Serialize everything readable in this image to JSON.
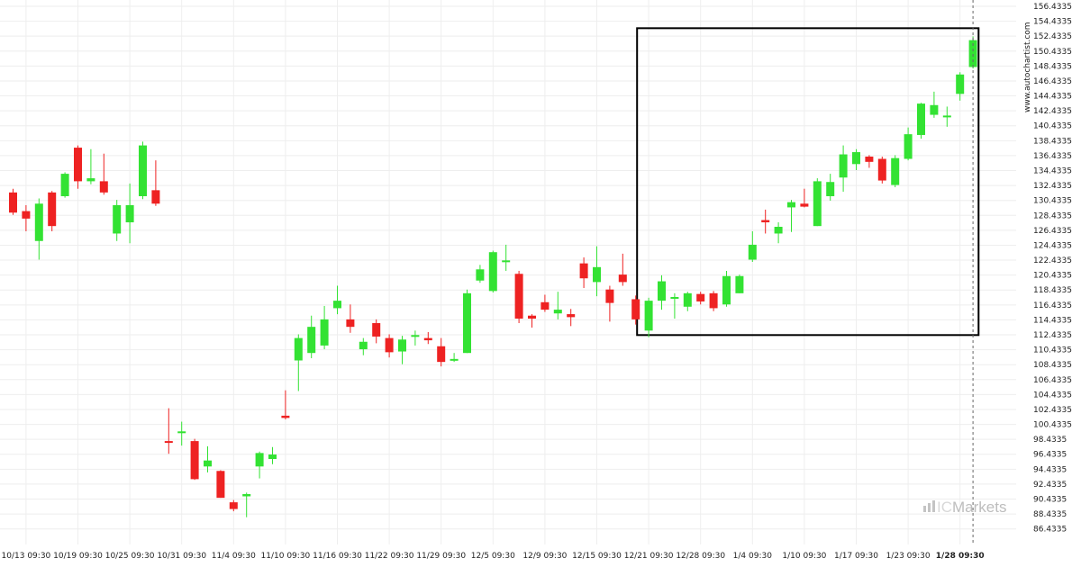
{
  "colors": {
    "up": "#33e233",
    "down": "#ee2222",
    "wick": "#333333",
    "pattern_box": "#000000",
    "cursor": "#666666"
  },
  "side_label": "www.autochartist.com",
  "watermark": {
    "brand_light": "IC",
    "brand_dark": "Markets"
  },
  "chart_data": {
    "type": "candlestick",
    "title": "",
    "xlabel": "",
    "ylabel": "",
    "ylim": [
      85.4335,
      156.4335
    ],
    "y_ticks": [
      "156.4335",
      "154.4335",
      "152.4335",
      "150.4335",
      "148.4335",
      "146.4335",
      "144.4335",
      "142.4335",
      "140.4335",
      "138.4335",
      "136.4335",
      "134.4335",
      "132.4335",
      "130.4335",
      "128.4335",
      "126.4335",
      "124.4335",
      "122.4335",
      "120.4335",
      "118.4335",
      "116.4335",
      "114.4335",
      "112.4335",
      "110.4335",
      "108.4335",
      "106.4335",
      "104.4335",
      "102.4335",
      "100.4335",
      "98.4335",
      "96.4335",
      "94.4335",
      "92.4335",
      "90.4335",
      "88.4335",
      "86.4335"
    ],
    "x_ticks": [
      {
        "label": "10/13 09:30",
        "index": 1
      },
      {
        "label": "10/19 09:30",
        "index": 5
      },
      {
        "label": "10/25 09:30",
        "index": 9
      },
      {
        "label": "10/31 09:30",
        "index": 13
      },
      {
        "label": "11/4 09:30",
        "index": 17
      },
      {
        "label": "11/10 09:30",
        "index": 21
      },
      {
        "label": "11/16 09:30",
        "index": 25
      },
      {
        "label": "11/22 09:30",
        "index": 29
      },
      {
        "label": "11/29 09:30",
        "index": 33
      },
      {
        "label": "12/5 09:30",
        "index": 37
      },
      {
        "label": "12/9 09:30",
        "index": 41
      },
      {
        "label": "12/15 09:30",
        "index": 45
      },
      {
        "label": "12/21 09:30",
        "index": 49
      },
      {
        "label": "12/28 09:30",
        "index": 53
      },
      {
        "label": "1/4 09:30",
        "index": 57
      },
      {
        "label": "1/10 09:30",
        "index": 61
      },
      {
        "label": "1/17 09:30",
        "index": 65
      },
      {
        "label": "1/23 09:30",
        "index": 69
      },
      {
        "label": "1/28 09:30",
        "index": 73,
        "bold": true
      }
    ],
    "candles": [
      {
        "o": 131.5,
        "h": 132.0,
        "l": 128.5,
        "c": 128.8
      },
      {
        "o": 129.0,
        "h": 129.8,
        "l": 126.3,
        "c": 128.0
      },
      {
        "o": 125.0,
        "h": 130.7,
        "l": 122.5,
        "c": 130.0
      },
      {
        "o": 131.5,
        "h": 131.7,
        "l": 126.3,
        "c": 127.0
      },
      {
        "o": 131.0,
        "h": 134.2,
        "l": 130.8,
        "c": 134.0
      },
      {
        "o": 137.5,
        "h": 137.8,
        "l": 132.0,
        "c": 133.0
      },
      {
        "o": 133.0,
        "h": 137.3,
        "l": 132.6,
        "c": 133.4
      },
      {
        "o": 133.0,
        "h": 136.7,
        "l": 131.2,
        "c": 131.5
      },
      {
        "o": 126.0,
        "h": 130.5,
        "l": 125.0,
        "c": 129.8
      },
      {
        "o": 127.5,
        "h": 132.7,
        "l": 124.7,
        "c": 129.8
      },
      {
        "o": 131.0,
        "h": 138.3,
        "l": 130.6,
        "c": 137.8
      },
      {
        "o": 131.8,
        "h": 135.8,
        "l": 129.7,
        "c": 130.0
      },
      {
        "o": 98.2,
        "h": 102.6,
        "l": 96.5,
        "c": 98.0
      },
      {
        "o": 99.3,
        "h": 100.8,
        "l": 97.6,
        "c": 99.5
      },
      {
        "o": 98.2,
        "h": 98.5,
        "l": 93.0,
        "c": 93.1
      },
      {
        "o": 94.8,
        "h": 97.5,
        "l": 94.0,
        "c": 95.6
      },
      {
        "o": 94.2,
        "h": 94.3,
        "l": 90.6,
        "c": 90.6
      },
      {
        "o": 90.0,
        "h": 90.3,
        "l": 88.8,
        "c": 89.1
      },
      {
        "o": 90.8,
        "h": 91.3,
        "l": 88.0,
        "c": 91.1
      },
      {
        "o": 94.8,
        "h": 96.8,
        "l": 93.2,
        "c": 96.6
      },
      {
        "o": 95.8,
        "h": 97.4,
        "l": 95.1,
        "c": 96.4
      },
      {
        "o": 101.6,
        "h": 105.0,
        "l": 101.1,
        "c": 101.3
      },
      {
        "o": 109.0,
        "h": 112.5,
        "l": 104.9,
        "c": 112.0
      },
      {
        "o": 110.0,
        "h": 115.0,
        "l": 109.3,
        "c": 113.5
      },
      {
        "o": 111.0,
        "h": 116.3,
        "l": 110.5,
        "c": 114.5
      },
      {
        "o": 116.0,
        "h": 119.0,
        "l": 115.2,
        "c": 117.0
      },
      {
        "o": 114.5,
        "h": 116.5,
        "l": 112.7,
        "c": 113.5
      },
      {
        "o": 110.5,
        "h": 112.0,
        "l": 109.7,
        "c": 111.5
      },
      {
        "o": 114.0,
        "h": 114.5,
        "l": 111.3,
        "c": 112.2
      },
      {
        "o": 112.0,
        "h": 112.5,
        "l": 109.4,
        "c": 110.1
      },
      {
        "o": 110.2,
        "h": 112.3,
        "l": 108.5,
        "c": 111.8
      },
      {
        "o": 112.2,
        "h": 113.0,
        "l": 111.0,
        "c": 112.4
      },
      {
        "o": 112.0,
        "h": 112.8,
        "l": 111.2,
        "c": 111.7
      },
      {
        "o": 110.9,
        "h": 112.0,
        "l": 108.2,
        "c": 108.8
      },
      {
        "o": 109.2,
        "h": 110.0,
        "l": 108.8,
        "c": 109.2
      },
      {
        "o": 110.0,
        "h": 118.5,
        "l": 110.0,
        "c": 118.0
      },
      {
        "o": 119.7,
        "h": 121.8,
        "l": 119.4,
        "c": 121.2
      },
      {
        "o": 118.3,
        "h": 123.7,
        "l": 118.1,
        "c": 123.5
      },
      {
        "o": 122.2,
        "h": 124.5,
        "l": 121.0,
        "c": 122.4
      },
      {
        "o": 120.6,
        "h": 121.0,
        "l": 114.0,
        "c": 114.6
      },
      {
        "o": 115.0,
        "h": 115.2,
        "l": 113.4,
        "c": 114.6
      },
      {
        "o": 116.8,
        "h": 117.8,
        "l": 115.5,
        "c": 115.8
      },
      {
        "o": 115.3,
        "h": 118.2,
        "l": 114.5,
        "c": 115.8
      },
      {
        "o": 115.2,
        "h": 115.9,
        "l": 113.6,
        "c": 114.8
      },
      {
        "o": 122.0,
        "h": 122.8,
        "l": 118.7,
        "c": 120.0
      },
      {
        "o": 119.5,
        "h": 124.3,
        "l": 117.6,
        "c": 121.5
      },
      {
        "o": 118.5,
        "h": 119.0,
        "l": 114.2,
        "c": 116.7
      },
      {
        "o": 120.5,
        "h": 123.3,
        "l": 119.0,
        "c": 119.5
      },
      {
        "o": 117.2,
        "h": 117.7,
        "l": 113.8,
        "c": 114.5
      },
      {
        "o": 113.0,
        "h": 117.4,
        "l": 112.1,
        "c": 117.0
      },
      {
        "o": 117.0,
        "h": 120.4,
        "l": 115.8,
        "c": 119.6
      },
      {
        "o": 117.3,
        "h": 118.0,
        "l": 114.6,
        "c": 117.5
      },
      {
        "o": 116.2,
        "h": 118.2,
        "l": 115.6,
        "c": 118.0
      },
      {
        "o": 117.9,
        "h": 118.2,
        "l": 116.5,
        "c": 116.9
      },
      {
        "o": 118.0,
        "h": 118.3,
        "l": 115.6,
        "c": 116.0
      },
      {
        "o": 116.5,
        "h": 121.0,
        "l": 116.2,
        "c": 120.3
      },
      {
        "o": 118.0,
        "h": 120.5,
        "l": 118.0,
        "c": 120.3
      },
      {
        "o": 122.5,
        "h": 126.3,
        "l": 122.2,
        "c": 124.5
      },
      {
        "o": 127.8,
        "h": 129.2,
        "l": 126.0,
        "c": 127.5
      },
      {
        "o": 126.0,
        "h": 127.5,
        "l": 124.7,
        "c": 126.9
      },
      {
        "o": 129.5,
        "h": 130.5,
        "l": 126.2,
        "c": 130.2
      },
      {
        "o": 130.0,
        "h": 132.0,
        "l": 129.5,
        "c": 129.6
      },
      {
        "o": 127.0,
        "h": 133.4,
        "l": 127.0,
        "c": 133.0
      },
      {
        "o": 131.0,
        "h": 134.0,
        "l": 130.4,
        "c": 132.9
      },
      {
        "o": 133.5,
        "h": 137.8,
        "l": 131.6,
        "c": 136.6
      },
      {
        "o": 135.3,
        "h": 137.3,
        "l": 134.5,
        "c": 136.9
      },
      {
        "o": 136.3,
        "h": 136.5,
        "l": 134.8,
        "c": 135.6
      },
      {
        "o": 136.0,
        "h": 136.3,
        "l": 132.7,
        "c": 133.1
      },
      {
        "o": 132.5,
        "h": 136.5,
        "l": 132.2,
        "c": 136.1
      },
      {
        "o": 136.0,
        "h": 140.2,
        "l": 135.8,
        "c": 139.3
      },
      {
        "o": 139.2,
        "h": 143.5,
        "l": 138.7,
        "c": 143.4
      },
      {
        "o": 141.9,
        "h": 145.0,
        "l": 141.5,
        "c": 143.2
      },
      {
        "o": 141.8,
        "h": 143.0,
        "l": 140.3,
        "c": 141.8
      },
      {
        "o": 144.7,
        "h": 147.6,
        "l": 143.8,
        "c": 147.3
      },
      {
        "o": 148.3,
        "h": 152.4,
        "l": 148.1,
        "c": 151.9
      }
    ],
    "pattern_box": {
      "start_index": 48,
      "end_index": 74.5,
      "top": 153.5,
      "bottom": 112.4
    },
    "cursor_index": 74
  }
}
